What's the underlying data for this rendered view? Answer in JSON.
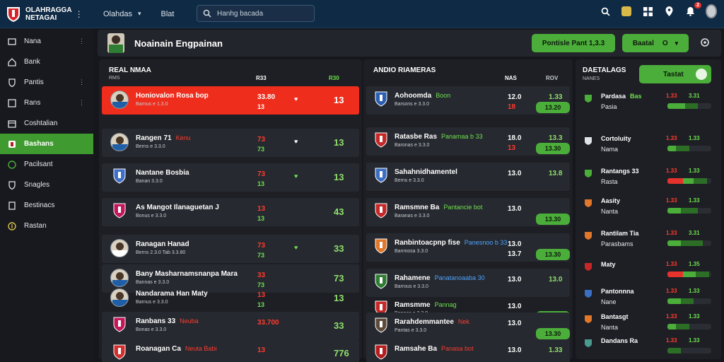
{
  "app": {
    "brand_line1": "OLAHRAGGA",
    "brand_line2": "NETAGAI",
    "nav": [
      {
        "label": "Olahdas"
      },
      {
        "label": "Blat"
      }
    ],
    "search_placeholder": "Hanhg bacada",
    "notification_count": "2"
  },
  "sidebar": {
    "items": [
      {
        "label": "Nana"
      },
      {
        "label": "Bank"
      },
      {
        "label": "Pantis"
      },
      {
        "label": "Rans"
      },
      {
        "label": "Coshtalian"
      },
      {
        "label": "Bashans"
      },
      {
        "label": "Pacilsant"
      },
      {
        "label": "Snagles"
      },
      {
        "label": "Bestinacs"
      },
      {
        "label": "Rastan"
      }
    ]
  },
  "header": {
    "title": "Noainain Engpainan",
    "button1": "Pontisle Pant 1,3.3",
    "select_label": "Baatal",
    "select_value": "O"
  },
  "panel1": {
    "title": "REAL NMAA",
    "sub": "RMS",
    "col1": "R33",
    "col2": "R30",
    "rows": [
      {
        "name": "Honiovalon Rosa bop",
        "tag": "",
        "sub": "Barnus e 1.3.0",
        "v1": "33.80",
        "v1b": "13",
        "v2": "13",
        "mark": "♥"
      },
      {
        "name": "Rangen 71",
        "tag": "Kenu",
        "sub": "Berns e 3.3.0",
        "v1": "73",
        "v1b": "73",
        "v2": "13",
        "mark": "♥"
      },
      {
        "name": "Nantane Bosbia",
        "tag": "",
        "sub": "Banan 3.3.0",
        "v1": "73",
        "v1b": "13",
        "v2": "13",
        "mark": "♥"
      },
      {
        "name": "As Mangot Ilanaguetan J",
        "tag": "",
        "sub": "Bonus e 3.3.0",
        "v1": "13",
        "v1b": "13",
        "v2": "43",
        "mark": ""
      },
      {
        "name": "Ranagan Hanad",
        "tag": "",
        "sub": "Berns 2.3.0    Tab 3.3.80",
        "v1": "73",
        "v1b": "73",
        "v2": "33",
        "mark": "♥"
      },
      {
        "name": "Bany Masharnamsnanpa Mara",
        "tag": "",
        "sub": "Bannas e 3.3.0",
        "v1": "33",
        "v1b": "73",
        "v2": "73",
        "mark": ""
      },
      {
        "name": "Nandarama Han Maty",
        "tag": "",
        "sub": "Barnus e 3.3.0",
        "v1": "13",
        "v1b": "13",
        "v2": "13",
        "mark": ""
      },
      {
        "name": "Ranbans 33",
        "tag": "Neuba",
        "sub": "Bonas e 3.3.0",
        "v1": "33.700",
        "v1b": "",
        "v2": "33",
        "mark": ""
      },
      {
        "name": "Roanagan Ca",
        "tag": "Neuta Babi",
        "sub": "",
        "v1": "13",
        "v1b": "",
        "v2": "776",
        "mark": ""
      }
    ]
  },
  "panel2": {
    "title": "ANDIO RIAMERAS",
    "col1": "NAS",
    "col2": "ROV",
    "rows": [
      {
        "name": "Aohoomda",
        "tag": "Boon",
        "tag_color": "green",
        "sub": "Barsons e 3.3.0",
        "n1": "12.0",
        "n1b": "18",
        "n2": "1.33",
        "pill": "13.20"
      },
      {
        "name": "Ratasbe Ras",
        "tag": "Panamaa b 33",
        "tag_color": "green",
        "sub": "Baronas e 3.3.0",
        "n1": "18.0",
        "n1b": "13",
        "n2": "13.3",
        "pill": "13.30"
      },
      {
        "name": "Sahahnidhamentel",
        "tag": "",
        "tag_color": "",
        "sub": "Berns e 3.3.0",
        "n1": "13.0",
        "n1b": "",
        "n2": "13.8",
        "pill": ""
      },
      {
        "name": "Ramsmne Ba",
        "tag": "Pantancie bot",
        "tag_color": "green",
        "sub": "Baranas e 3.3.0",
        "n1": "13.0",
        "n1b": "",
        "n2": "",
        "pill": "13.30"
      },
      {
        "name": "Ranbintoacpnp fise",
        "tag": "Panesnoo b 33",
        "tag_color": "blue",
        "sub": "Banmosa 3.3.0",
        "n1": "13.0",
        "n1b": "13.7",
        "n2": "",
        "pill": "13.30"
      },
      {
        "name": "Rahamene",
        "tag": "Panatanoaaba 30",
        "tag_color": "blue",
        "sub": "Barrous e 3.3.0",
        "n1": "13.0",
        "n1b": "",
        "n2": "13.0",
        "pill": ""
      },
      {
        "name": "Ramsmme",
        "tag": "Pannag",
        "tag_color": "green",
        "sub": "Bannas e 3.3.0",
        "n1": "13.0",
        "n1b": "",
        "n2": "",
        "pill": "13.30"
      },
      {
        "name": "Rarahdemmantee",
        "tag": "Nek",
        "tag_color": "red",
        "sub": "Pantas e 3.3.0",
        "n1": "13.0",
        "n1b": "",
        "n2": "",
        "pill": "13.30"
      },
      {
        "name": "Ramsahe Ba",
        "tag": "Panasa bot",
        "tag_color": "red",
        "sub": "",
        "n1": "13.0",
        "n1b": "",
        "n2": "1.33",
        "pill": ""
      }
    ]
  },
  "panel3": {
    "title": "DAETALAGS",
    "sub": "NANES",
    "button": "Tastat",
    "rows": [
      {
        "n": "Pardasa",
        "tag": "Bas",
        "n2": "Pasia",
        "v": "1.33",
        "v2": "3.31",
        "bar": [
          0.0,
          0.4,
          0.3
        ]
      },
      {
        "n": "Cortoluity",
        "tag": "",
        "n2": "Nama",
        "v": "1.33",
        "v2": "1.33",
        "bar": [
          0.0,
          0.2,
          0.3
        ]
      },
      {
        "n": "Rantangs 33",
        "tag": "",
        "n2": "Rasta",
        "v": "1.33",
        "v2": "1.33",
        "bar": [
          0.35,
          0.25,
          0.3
        ]
      },
      {
        "n": "Aasity",
        "tag": "",
        "n2": "Nanta",
        "v": "1.33",
        "v2": "1.33",
        "bar": [
          0.0,
          0.3,
          0.4
        ]
      },
      {
        "n": "Rantilam Tia",
        "tag": "",
        "n2": "Parasbams",
        "v": "1.33",
        "v2": "3.31",
        "bar": [
          0.0,
          0.3,
          0.5
        ]
      },
      {
        "n": "Maty",
        "tag": "",
        "n2": "",
        "v": "1.33",
        "v2": "1.35",
        "bar": [
          0.35,
          0.3,
          0.3
        ]
      },
      {
        "n": "Pantonnna",
        "tag": "",
        "n2": "Nane",
        "v": "1.33",
        "v2": "1.33",
        "bar": [
          0.0,
          0.3,
          0.3
        ]
      },
      {
        "n": "Bantasgt",
        "tag": "",
        "n2": "Nanta",
        "v": "1.33",
        "v2": "1.33",
        "bar": [
          0.0,
          0.2,
          0.3
        ]
      },
      {
        "n": "Dandans Ra",
        "tag": "",
        "n2": "",
        "v": "1.33",
        "v2": "1.33",
        "bar": [
          0.0,
          0.0,
          0.3
        ]
      }
    ]
  },
  "colors": {
    "accent": "#4cae3a",
    "alert": "#ef2d1c",
    "topbar": "#0f2a44"
  }
}
